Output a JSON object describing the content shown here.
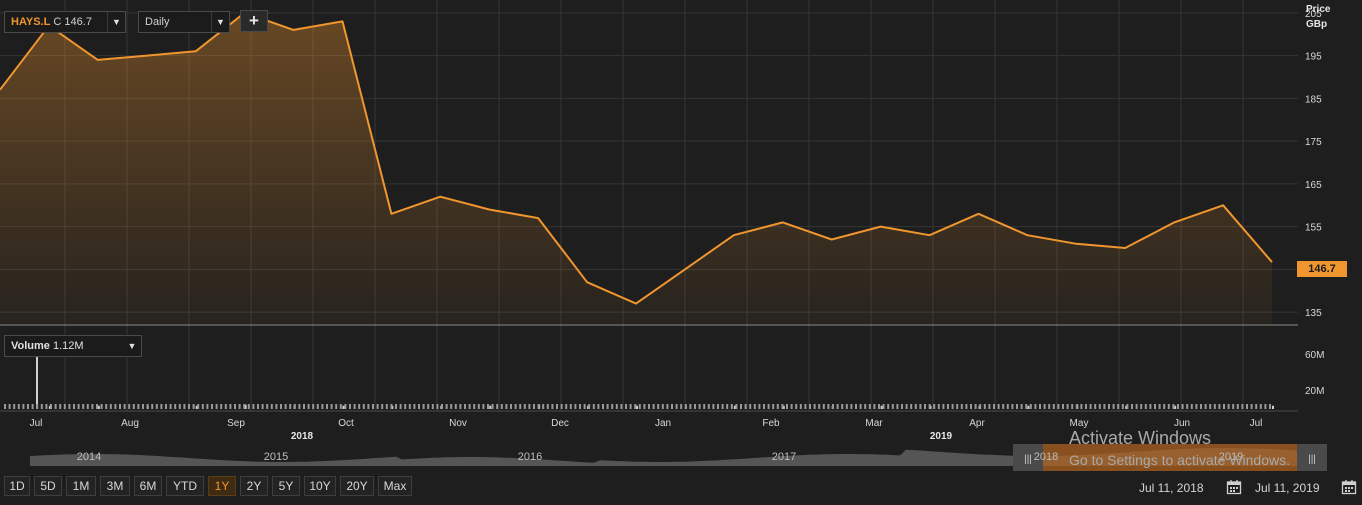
{
  "header": {
    "symbol": "HAYS.L",
    "close_prefix": "C",
    "close_value": "146.7",
    "interval": "Daily",
    "add_label": "+",
    "dropdown_arrow": "▼"
  },
  "price_axis": {
    "title_line1": "Price",
    "title_line2": "GBp",
    "ticks": [
      "205",
      "195",
      "185",
      "175",
      "165",
      "155",
      "145",
      "135"
    ],
    "last_price": "146.7"
  },
  "volume": {
    "label": "Volume",
    "value": "1.12M",
    "axis_ticks": [
      "60M",
      "20M"
    ]
  },
  "time_axis": {
    "months": [
      "Jul",
      "Aug",
      "Sep",
      "Oct",
      "Nov",
      "Dec",
      "Jan",
      "Feb",
      "Mar",
      "Apr",
      "May",
      "Jun",
      "Jul"
    ],
    "years": [
      "2018",
      "2019"
    ]
  },
  "navigator": {
    "years": [
      "2014",
      "2015",
      "2016",
      "2017",
      "2018",
      "2019"
    ],
    "handle_glyph": "|||"
  },
  "range_buttons": [
    "1D",
    "5D",
    "1M",
    "3M",
    "6M",
    "YTD",
    "1Y",
    "2Y",
    "5Y",
    "10Y",
    "20Y",
    "Max"
  ],
  "active_range": "1Y",
  "dates": {
    "start": "Jul 11, 2018",
    "end": "Jul 11, 2019"
  },
  "watermark": {
    "line1": "Activate Windows",
    "line2": "Go to Settings to activate Windows."
  },
  "colors": {
    "line": "#f0962e",
    "background": "#1e1e1e",
    "grid": "#3a3a3a"
  },
  "chart_data": {
    "type": "line",
    "title": "",
    "xlabel": "",
    "ylabel": "Price GBp",
    "ylim": [
      132,
      208
    ],
    "x": [
      "Jul 11, 2018",
      "Jul 25, 2018",
      "Aug 8, 2018",
      "Aug 22, 2018",
      "Sep 5, 2018",
      "Sep 19, 2018",
      "Oct 3, 2018",
      "Oct 17, 2018",
      "Oct 31, 2018",
      "Nov 14, 2018",
      "Nov 28, 2018",
      "Dec 12, 2018",
      "Dec 26, 2018",
      "Jan 9, 2019",
      "Jan 23, 2019",
      "Feb 6, 2019",
      "Feb 20, 2019",
      "Mar 6, 2019",
      "Mar 20, 2019",
      "Apr 3, 2019",
      "Apr 17, 2019",
      "May 1, 2019",
      "May 15, 2019",
      "May 29, 2019",
      "Jun 12, 2019",
      "Jun 26, 2019",
      "Jul 11, 2019"
    ],
    "series": [
      {
        "values": [
          187,
          202,
          194,
          195,
          196,
          205,
          201,
          203,
          158,
          162,
          159,
          157,
          142,
          137,
          145,
          153,
          156,
          152,
          155,
          153,
          158,
          153,
          151,
          150,
          156,
          160,
          146.7
        ]
      }
    ],
    "volume_values": [
      50,
      3,
      3,
      3,
      3,
      4,
      3,
      3,
      3,
      3,
      3,
      4,
      3,
      3,
      3,
      3,
      3,
      3,
      3,
      3,
      3,
      3,
      4,
      3,
      3,
      3,
      3
    ]
  }
}
